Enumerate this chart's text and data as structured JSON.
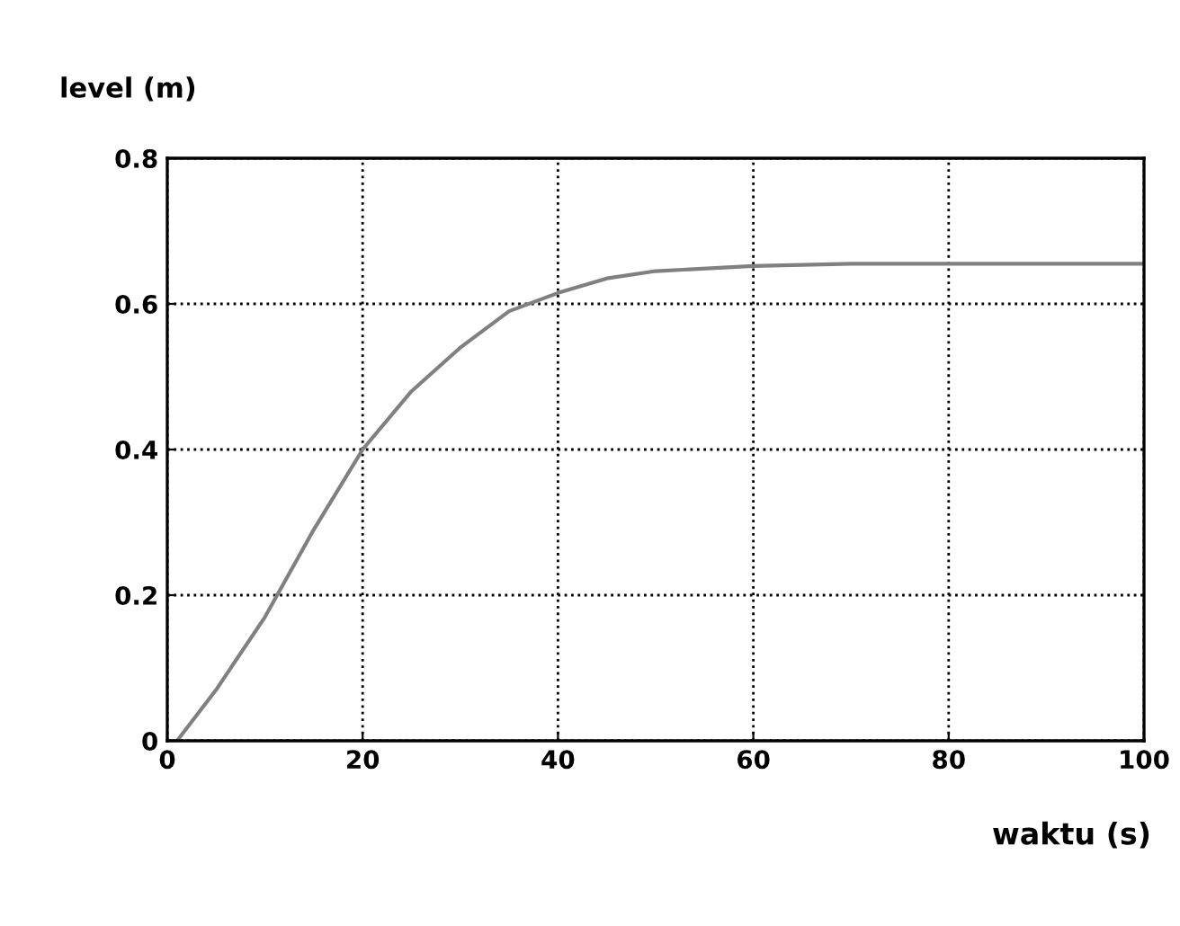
{
  "chart_data": {
    "type": "line",
    "xlabel": "waktu (s)",
    "ylabel": "level (m)",
    "x": [
      0,
      1,
      5,
      10,
      15,
      20,
      25,
      30,
      35,
      40,
      45,
      50,
      60,
      70,
      100
    ],
    "series": [
      {
        "color": "#808080",
        "values": [
          0,
          0,
          0.07,
          0.17,
          0.29,
          0.4,
          0.48,
          0.54,
          0.59,
          0.615,
          0.635,
          0.645,
          0.652,
          0.655,
          0.655
        ]
      }
    ],
    "xlim": [
      0,
      100
    ],
    "xticks": [
      0,
      20,
      40,
      60,
      80,
      100
    ],
    "ylim": [
      0,
      0.8
    ],
    "yticks": [
      0,
      0.2,
      0.4,
      0.6,
      0.8
    ],
    "grid": true,
    "line_style": "solid"
  }
}
